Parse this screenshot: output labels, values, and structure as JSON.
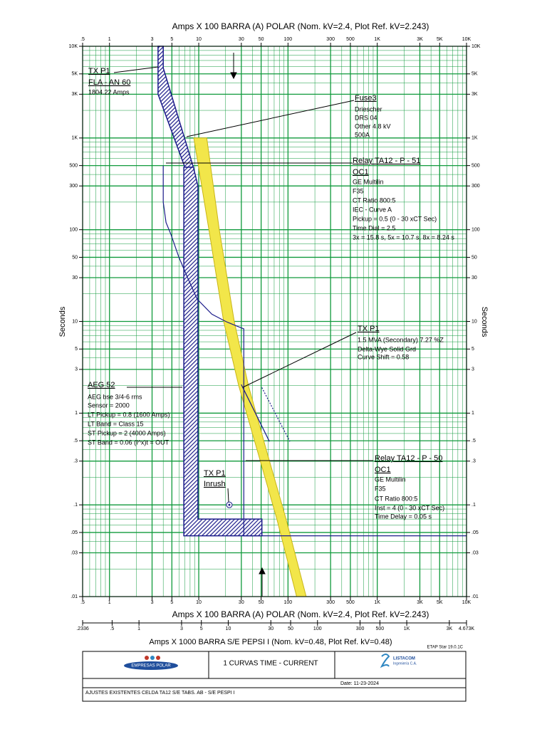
{
  "chart_data": {
    "type": "line",
    "x_label": "Amps  X  100   BARRA (A) POLAR (Nom. kV=2.4, Plot Ref. kV=2.243)",
    "x2_label": "Amps  X  1000   BARRA S/E PEPSI I (Nom. kV=0.48, Plot Ref. kV=0.48)",
    "y_label": "Seconds",
    "log_x": true,
    "log_y": true,
    "grid": true,
    "grid_color": "#109a3c",
    "xlim": [
      0.5,
      10000
    ],
    "xticks": [
      {
        "value": 0.5,
        "label": ".5"
      },
      1,
      3,
      5,
      10,
      30,
      50,
      100,
      300,
      500,
      {
        "value": 1000,
        "label": "1K"
      },
      {
        "value": 3000,
        "label": "3K"
      },
      {
        "value": 5000,
        "label": "5K"
      },
      {
        "value": 10000,
        "label": "10K"
      }
    ],
    "x2lim": [
      0.2336,
      4673
    ],
    "x2ticks": [
      {
        "value": 0.2336,
        "label": ".2336"
      },
      {
        "value": 0.5,
        "label": ".5"
      },
      1,
      3,
      5,
      10,
      30,
      50,
      100,
      300,
      500,
      {
        "value": 1000,
        "label": "1K"
      },
      {
        "value": 3000,
        "label": "3K"
      },
      {
        "value": 4673,
        "label": "4.673K"
      }
    ],
    "ylim": [
      0.01,
      10000
    ],
    "yticks": [
      {
        "value": 0.01,
        "label": ".01"
      },
      {
        "value": 0.03,
        "label": ".03"
      },
      {
        "value": 0.05,
        "label": ".05"
      },
      {
        "value": 0.1,
        "label": ".1"
      },
      {
        "value": 0.3,
        "label": ".3"
      },
      {
        "value": 0.5,
        "label": ".5"
      },
      1,
      3,
      5,
      10,
      30,
      50,
      100,
      300,
      500,
      {
        "value": 1000,
        "label": "1K"
      },
      {
        "value": 3000,
        "label": "3K"
      },
      {
        "value": 5000,
        "label": "5K"
      },
      {
        "value": 10000,
        "label": "10K"
      }
    ],
    "series": [
      {
        "color": "#1c1c8a",
        "style": "hatched",
        "x": [
          3.5,
          4,
          4,
          8.7,
          7,
          3.5
        ],
        "y": [
          10000,
          10000,
          5800,
          480,
          480,
          3000
        ]
      },
      {
        "color": "#1c1c8a",
        "style": "hatched",
        "x": [
          6.8,
          8.7,
          9.8,
          9.8,
          51,
          51,
          6.8
        ],
        "y": [
          480,
          480,
          300,
          0.07,
          0.07,
          0.046,
          0.046
        ]
      },
      {
        "color": "#f2e64a",
        "style": "band",
        "x": [
          8.8,
          13,
          19,
          28,
          45,
          75,
          125,
          160,
          95,
          57,
          36,
          25,
          17,
          12.3
        ],
        "y": [
          1000,
          100,
          10,
          2,
          0.4,
          0.07,
          0.01,
          0.01,
          0.07,
          0.4,
          2,
          10,
          100,
          1000
        ]
      },
      {
        "color": "#1c1c8a",
        "style": "line",
        "x": [
          4,
          4,
          4.3,
          4.9,
          6,
          7.5,
          9.6,
          14,
          20,
          26,
          32,
          32,
          10000
        ],
        "y": [
          500,
          200,
          120,
          88,
          50,
          30,
          17.5,
          12,
          10,
          9,
          8.3,
          0.046,
          0.046
        ]
      },
      {
        "color": "#1c1c8a",
        "style": "line",
        "x": [
          30,
          62
        ],
        "y": [
          2.05,
          0.49
        ]
      },
      {
        "color": "#1c1c8a",
        "style": "dashed",
        "x": [
          51,
          105
        ],
        "y": [
          1.9,
          0.49
        ]
      },
      {
        "color": "#1c1c8a",
        "style": "point",
        "x": [
          22
        ],
        "y": [
          0.1
        ]
      }
    ],
    "annotations": [
      {
        "lines": [
          "TX P1",
          "FLA - AN 60",
          "1804.22 Amps"
        ]
      },
      {
        "lines": [
          "Fuse3",
          "Driescher",
          "DRS 04",
          "Other  4.8 kV",
          "500A"
        ]
      },
      {
        "lines": [
          "Relay TA12 - P - 51",
          "OC1",
          "GE Multilin",
          "F35",
          "CT Ratio 800:5",
          "IEC - Curve A",
          "Pickup = 0.5 (0 - 30  xCT Sec)",
          "Time Dial = 2.5",
          "3x = 15.8 s, 5x = 10.7 s, 8x = 8.24 s"
        ]
      },
      {
        "lines": [
          "TX P1",
          "1.5 MVA (Secondary)  7.27 %Z",
          "Delta-Wye Solid Grd",
          "Curve Shift = 0.58"
        ]
      },
      {
        "lines": [
          "AEG 52",
          "AEG  bse 3/4-6 rms",
          "Sensor = 2000",
          "LT Pickup = 0.8 (1600 Amps)",
          "LT Band = Class 15",
          "ST Pickup = 2 (4000 Amps)",
          "ST Band = 0.06  (I^x)t = OUT"
        ]
      },
      {
        "lines": [
          "Relay TA12 - P - 50",
          "OC1",
          "GE Multilin",
          "F35",
          "CT Ratio 800:5",
          "Inst = 4 (0 - 30  xCT Sec)",
          "Time Delay = 0.05 s"
        ]
      },
      {
        "lines": [
          "TX P1",
          "Inrush"
        ]
      }
    ]
  },
  "title_block": {
    "software": "ETAP Star 19.0.1C",
    "logo_left": "EMPRESAS POLAR",
    "title": "1 CURVAS TIME - CURRENT",
    "logo_right": [
      "LISTACOM",
      "Ingeniería C.A."
    ],
    "date": "Date:  11-23-2024",
    "description": "AJUSTES EXISTENTES CELDA TA12 S/E TABS. AB - S/E PESPI I"
  }
}
